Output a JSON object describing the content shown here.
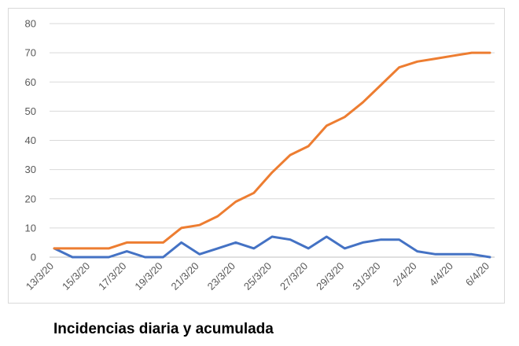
{
  "caption": "Incidencias diaria y acumulada",
  "chart_data": {
    "type": "line",
    "title": "",
    "xlabel": "",
    "ylabel": "",
    "ylim": [
      0,
      80
    ],
    "yticks": [
      "0",
      "10",
      "20",
      "30",
      "40",
      "50",
      "60",
      "70",
      "80"
    ],
    "grid": true,
    "legend": "none",
    "xtick_labels": [
      "13/3/20",
      "15/3/20",
      "17/3/20",
      "19/3/20",
      "21/3/20",
      "23/3/20",
      "25/3/20",
      "27/3/20",
      "29/3/20",
      "31/3/20",
      "2/4/20",
      "4/4/20",
      "6/4/20"
    ],
    "x": [
      "13/3/20",
      "14/3/20",
      "15/3/20",
      "16/3/20",
      "17/3/20",
      "18/3/20",
      "19/3/20",
      "20/3/20",
      "21/3/20",
      "22/3/20",
      "23/3/20",
      "24/3/20",
      "25/3/20",
      "26/3/20",
      "27/3/20",
      "28/3/20",
      "29/3/20",
      "30/3/20",
      "31/3/20",
      "1/4/20",
      "2/4/20",
      "3/4/20",
      "4/4/20",
      "5/4/20",
      "6/4/20"
    ],
    "series": [
      {
        "color": "#4472c4",
        "values": [
          3,
          0,
          0,
          0,
          2,
          0,
          0,
          5,
          1,
          3,
          5,
          3,
          7,
          6,
          3,
          7,
          3,
          5,
          6,
          6,
          2,
          1,
          1,
          1,
          0
        ]
      },
      {
        "color": "#ed7d31",
        "values": [
          3,
          3,
          3,
          3,
          5,
          5,
          5,
          10,
          11,
          14,
          19,
          22,
          29,
          35,
          38,
          45,
          48,
          53,
          59,
          65,
          67,
          68,
          69,
          70,
          70
        ]
      }
    ]
  }
}
